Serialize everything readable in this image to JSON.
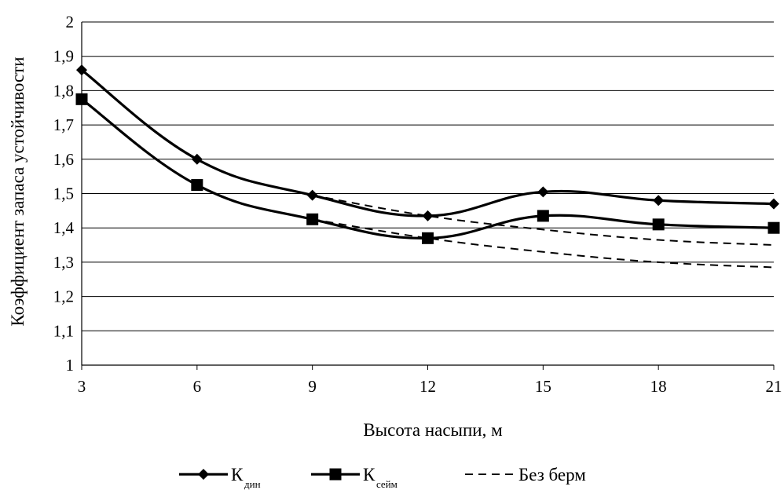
{
  "chart_data": {
    "type": "line",
    "xlabel": "Высота насыпи, м",
    "ylabel": "Коэффициент запаса устойчивости",
    "x": [
      3,
      6,
      9,
      12,
      15,
      18,
      21
    ],
    "xlim": [
      3,
      21
    ],
    "ylim": [
      1,
      2
    ],
    "yticks": [
      "1",
      "1,1",
      "1,2",
      "1,3",
      "1,4",
      "1,5",
      "1,6",
      "1,7",
      "1,8",
      "1,9",
      "2"
    ],
    "xticks": [
      "3",
      "6",
      "9",
      "12",
      "15",
      "18",
      "21"
    ],
    "grid": true,
    "legend_position": "bottom",
    "series": [
      {
        "name": "К",
        "subscript": "дин",
        "marker": "diamond",
        "style": "solid",
        "values": [
          1.86,
          1.6,
          1.495,
          1.435,
          1.505,
          1.48,
          1.47
        ]
      },
      {
        "name": "К",
        "subscript": "сейм",
        "marker": "square",
        "style": "solid",
        "values": [
          1.775,
          1.525,
          1.425,
          1.37,
          1.435,
          1.41,
          1.4
        ]
      },
      {
        "name": "Без берм",
        "style": "dashed",
        "marker": "none",
        "lines": [
          {
            "x": [
              9,
              12,
              15,
              18,
              21
            ],
            "y": [
              1.495,
              1.435,
              1.395,
              1.365,
              1.35
            ]
          },
          {
            "x": [
              9,
              12,
              15,
              18,
              21
            ],
            "y": [
              1.425,
              1.37,
              1.33,
              1.3,
              1.285
            ]
          }
        ]
      }
    ]
  }
}
